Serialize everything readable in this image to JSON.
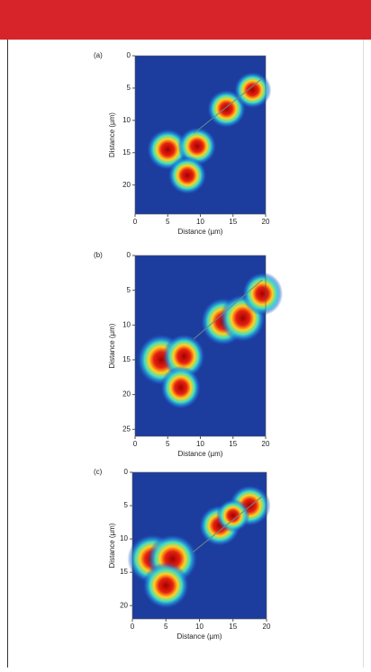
{
  "chart_data": [
    {
      "type": "heatmap",
      "panel_label": "(a)",
      "xlabel": "Distance (µm)",
      "ylabel": "Distance (µm)",
      "xlim": [
        0,
        20
      ],
      "ylim": [
        0,
        24.5
      ],
      "xticks": [
        0,
        5,
        10,
        15,
        20
      ],
      "yticks": [
        0,
        5,
        10,
        15,
        20
      ]
    },
    {
      "type": "heatmap",
      "panel_label": "(b)",
      "xlabel": "Distance (µm)",
      "ylabel": "Distance (µm)",
      "xlim": [
        0,
        20
      ],
      "ylim": [
        0,
        26
      ],
      "xticks": [
        0,
        5,
        10,
        15,
        20
      ],
      "yticks": [
        0,
        5,
        10,
        15,
        20,
        25
      ]
    },
    {
      "type": "heatmap",
      "panel_label": "(c)",
      "xlabel": "Distance (µm)",
      "ylabel": "Distance (µm)",
      "xlim": [
        0,
        20
      ],
      "ylim": [
        0,
        22
      ],
      "xticks": [
        0,
        5,
        10,
        15,
        20
      ],
      "yticks": [
        0,
        5,
        10,
        15,
        20
      ]
    }
  ]
}
